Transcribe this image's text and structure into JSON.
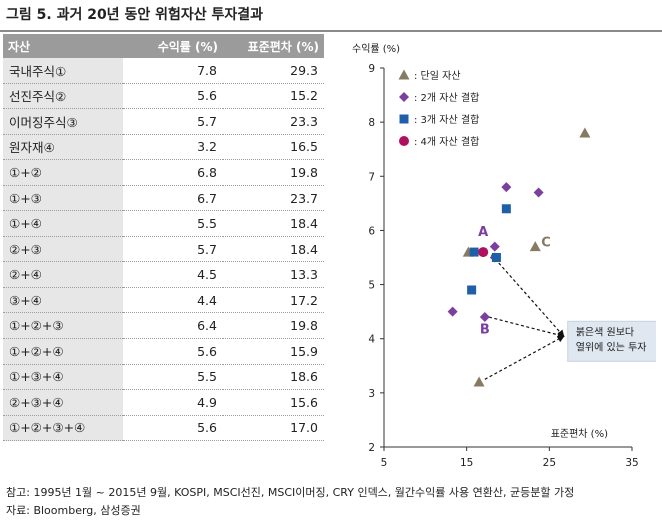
{
  "figure": {
    "title": "그림 5. 과거 20년 동안 위험자산 투자결과"
  },
  "table": {
    "headers": [
      "자산",
      "수익률 (%)",
      "표준편차 (%)"
    ],
    "rows": [
      [
        "국내주식①",
        "7.8",
        "29.3"
      ],
      [
        "선진주식②",
        "5.6",
        "15.2"
      ],
      [
        "이머징주식③",
        "5.7",
        "23.3"
      ],
      [
        "원자재④",
        "3.2",
        "16.5"
      ],
      [
        "①+②",
        "6.8",
        "19.8"
      ],
      [
        "①+③",
        "6.7",
        "23.7"
      ],
      [
        "①+④",
        "5.5",
        "18.4"
      ],
      [
        "②+③",
        "5.7",
        "18.4"
      ],
      [
        "②+④",
        "4.5",
        "13.3"
      ],
      [
        "③+④",
        "4.4",
        "17.2"
      ],
      [
        "①+②+③",
        "6.4",
        "19.8"
      ],
      [
        "①+②+④",
        "5.6",
        "15.9"
      ],
      [
        "①+③+④",
        "5.5",
        "18.6"
      ],
      [
        "②+③+④",
        "4.9",
        "15.6"
      ],
      [
        "①+②+③+④",
        "5.6",
        "17.0"
      ]
    ]
  },
  "chart_data": {
    "type": "scatter",
    "ylabel": "수익률 (%)",
    "xlabel": "표준편차 (%)",
    "xlim": [
      5,
      35
    ],
    "ylim": [
      2,
      9
    ],
    "xticks": [
      5,
      15,
      25,
      35
    ],
    "yticks": [
      2,
      3,
      4,
      5,
      6,
      7,
      8,
      9
    ],
    "grid": false,
    "legend_position": "top-left",
    "series": [
      {
        "name": "단일 자산",
        "marker": "triangle",
        "color": "#877a62",
        "points": [
          [
            29.3,
            7.8
          ],
          [
            15.2,
            5.6
          ],
          [
            23.3,
            5.7
          ],
          [
            16.5,
            3.2
          ]
        ]
      },
      {
        "name": "2개 자산 결합",
        "marker": "diamond",
        "color": "#7b3fa0",
        "points": [
          [
            19.8,
            6.8
          ],
          [
            23.7,
            6.7
          ],
          [
            18.4,
            5.5
          ],
          [
            18.4,
            5.7
          ],
          [
            13.3,
            4.5
          ],
          [
            17.2,
            4.4
          ]
        ]
      },
      {
        "name": "3개 자산 결합",
        "marker": "square",
        "color": "#1f5fa8",
        "points": [
          [
            19.8,
            6.4
          ],
          [
            15.9,
            5.6
          ],
          [
            18.6,
            5.5
          ],
          [
            15.6,
            4.9
          ]
        ]
      },
      {
        "name": "4개 자산 결합",
        "marker": "circle",
        "color": "#b0105f",
        "points": [
          [
            17.0,
            5.6
          ]
        ]
      }
    ],
    "annotations": {
      "labels": [
        {
          "text": "A",
          "x": 17.0,
          "y": 5.9,
          "color": "#7b3fa0"
        },
        {
          "text": "B",
          "x": 17.2,
          "y": 4.1,
          "color": "#7b3fa0"
        },
        {
          "text": "C",
          "x": 24.6,
          "y": 5.7,
          "color": "#877a62"
        }
      ],
      "callout_lines": [
        "붉은색 원보다",
        "열위에 있는 투자"
      ],
      "callout_anchor": [
        26.5,
        4.1
      ],
      "arrows_from": [
        [
          18.0,
          5.55
        ],
        [
          17.7,
          4.4
        ],
        [
          17.2,
          3.25
        ]
      ]
    }
  },
  "notes": {
    "line1": "참고: 1995년 1월 ~ 2015년 9월, KOSPI, MSCI선진, MSCI이머징, CRY 인덱스, 월간수익률 사용 연환산, 균등분할 가정",
    "line2": "자료: Bloomberg, 삼성증권"
  }
}
